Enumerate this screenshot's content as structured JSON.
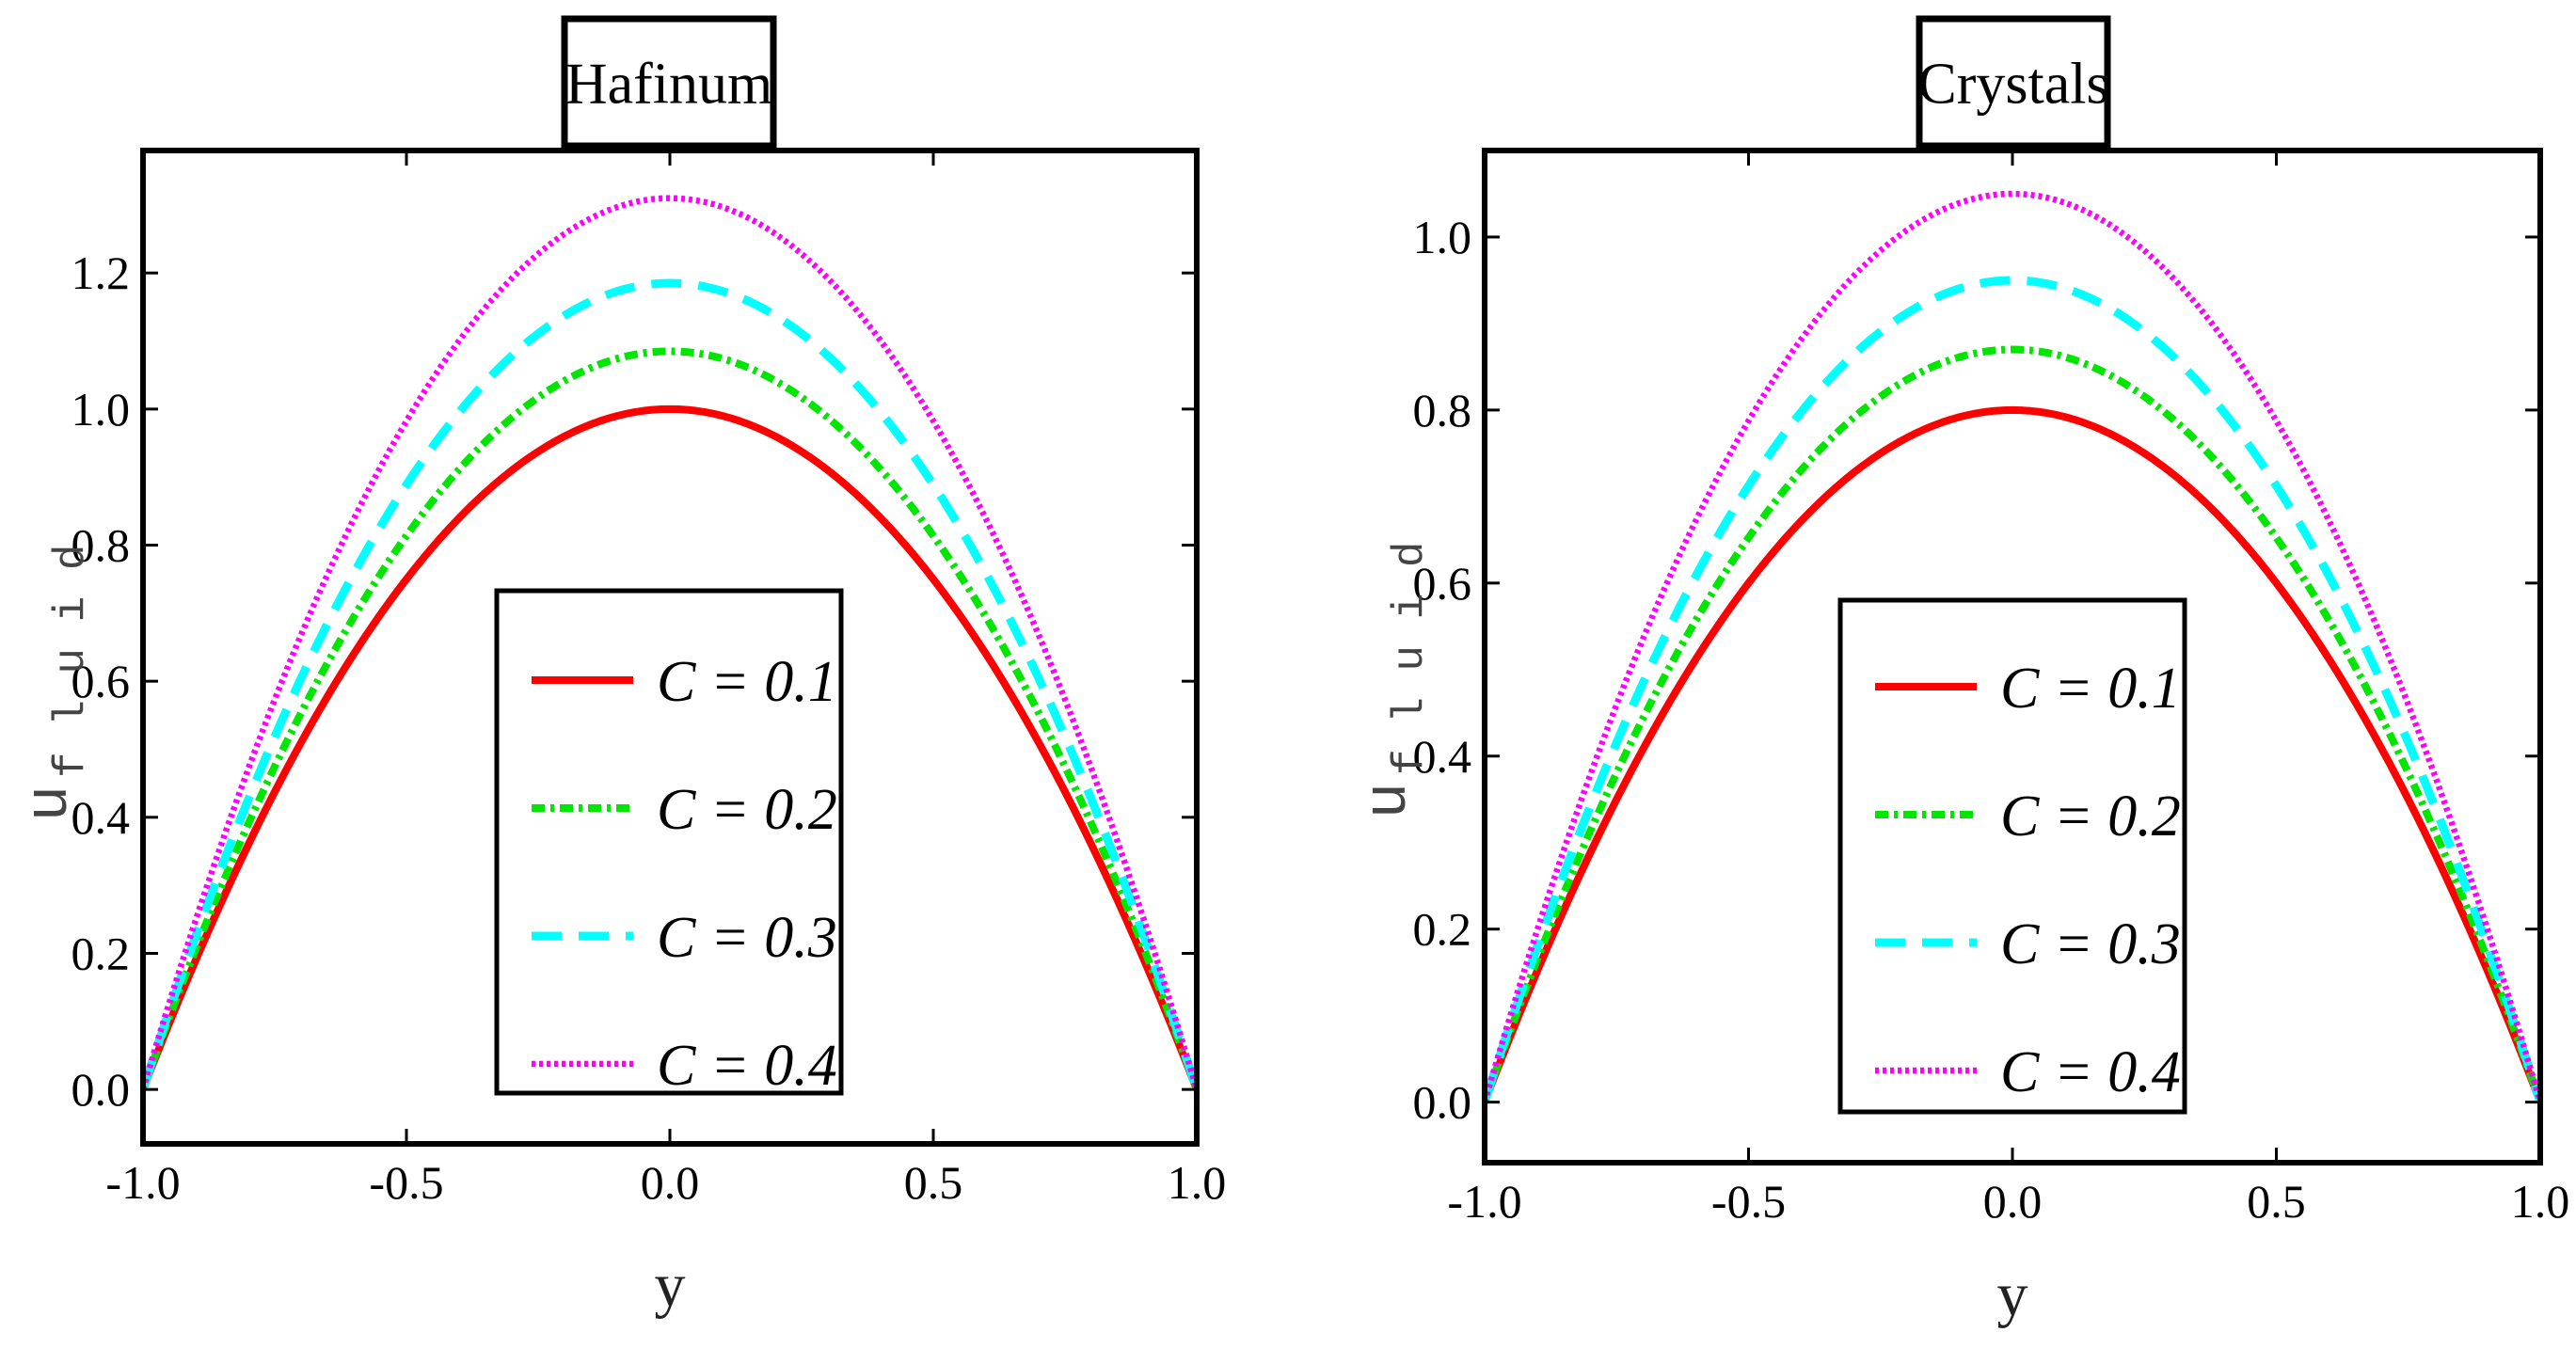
{
  "chart_data": [
    {
      "type": "line",
      "title": "Hafinum",
      "xlabel": "y",
      "ylabel": "u",
      "ylabel_subscript": "f l u i d",
      "xlim": [
        -1.0,
        1.0
      ],
      "ylim": [
        -0.08,
        1.38
      ],
      "xticks": [
        -1.0,
        -0.5,
        0.0,
        0.5,
        1.0
      ],
      "xtick_labels": [
        "-1.0",
        "-0.5",
        "0.0",
        "0.5",
        "1.0"
      ],
      "yticks": [
        0.0,
        0.2,
        0.4,
        0.6,
        0.8,
        1.0,
        1.2
      ],
      "ytick_labels": [
        "0.0",
        "0.2",
        "0.4",
        "0.6",
        "0.8",
        "1.0",
        "1.2"
      ],
      "legend_position": "center",
      "series": [
        {
          "name": "C = 0.1",
          "peak": 1.0,
          "x": [
            -1.0,
            -0.75,
            -0.5,
            -0.25,
            0.0,
            0.25,
            0.5,
            0.75,
            1.0
          ],
          "values": [
            0.0,
            0.44,
            0.75,
            0.94,
            1.0,
            0.94,
            0.75,
            0.44,
            0.0
          ],
          "color": "#ff0000",
          "style": "solid"
        },
        {
          "name": "C = 0.2",
          "peak": 1.085,
          "x": [
            -1.0,
            -0.75,
            -0.5,
            -0.25,
            0.0,
            0.25,
            0.5,
            0.75,
            1.0
          ],
          "values": [
            0.0,
            0.47,
            0.81,
            1.02,
            1.085,
            1.02,
            0.81,
            0.47,
            0.0
          ],
          "color": "#00e600",
          "style": "dashdot"
        },
        {
          "name": "C = 0.3",
          "peak": 1.185,
          "x": [
            -1.0,
            -0.75,
            -0.5,
            -0.25,
            0.0,
            0.25,
            0.5,
            0.75,
            1.0
          ],
          "values": [
            0.0,
            0.52,
            0.89,
            1.11,
            1.185,
            1.11,
            0.89,
            0.52,
            0.0
          ],
          "color": "#00ffff",
          "style": "dashed"
        },
        {
          "name": "C = 0.4",
          "peak": 1.31,
          "x": [
            -1.0,
            -0.75,
            -0.5,
            -0.25,
            0.0,
            0.25,
            0.5,
            0.75,
            1.0
          ],
          "values": [
            0.0,
            0.57,
            0.98,
            1.23,
            1.31,
            1.23,
            0.98,
            0.57,
            0.0
          ],
          "color": "#ff00ff",
          "style": "dotted"
        }
      ]
    },
    {
      "type": "line",
      "title": "Crystals",
      "xlabel": "y",
      "ylabel": "u",
      "ylabel_subscript": "f l u i d",
      "xlim": [
        -1.0,
        1.0
      ],
      "ylim": [
        -0.07,
        1.1
      ],
      "xticks": [
        -1.0,
        -0.5,
        0.0,
        0.5,
        1.0
      ],
      "xtick_labels": [
        "-1.0",
        "-0.5",
        "0.0",
        "0.5",
        "1.0"
      ],
      "yticks": [
        0.0,
        0.2,
        0.4,
        0.6,
        0.8,
        1.0
      ],
      "ytick_labels": [
        "0.0",
        "0.2",
        "0.4",
        "0.6",
        "0.8",
        "1.0"
      ],
      "legend_position": "center",
      "series": [
        {
          "name": "C = 0.1",
          "peak": 0.8,
          "x": [
            -1.0,
            -0.75,
            -0.5,
            -0.25,
            0.0,
            0.25,
            0.5,
            0.75,
            1.0
          ],
          "values": [
            0.0,
            0.35,
            0.6,
            0.75,
            0.8,
            0.75,
            0.6,
            0.35,
            0.0
          ],
          "color": "#ff0000",
          "style": "solid"
        },
        {
          "name": "C = 0.2",
          "peak": 0.87,
          "x": [
            -1.0,
            -0.75,
            -0.5,
            -0.25,
            0.0,
            0.25,
            0.5,
            0.75,
            1.0
          ],
          "values": [
            0.0,
            0.38,
            0.65,
            0.82,
            0.87,
            0.82,
            0.65,
            0.38,
            0.0
          ],
          "color": "#00e600",
          "style": "dashdot"
        },
        {
          "name": "C = 0.3",
          "peak": 0.95,
          "x": [
            -1.0,
            -0.75,
            -0.5,
            -0.25,
            0.0,
            0.25,
            0.5,
            0.75,
            1.0
          ],
          "values": [
            0.0,
            0.42,
            0.71,
            0.89,
            0.95,
            0.89,
            0.71,
            0.42,
            0.0
          ],
          "color": "#00ffff",
          "style": "dashed"
        },
        {
          "name": "C = 0.4",
          "peak": 1.05,
          "x": [
            -1.0,
            -0.75,
            -0.5,
            -0.25,
            0.0,
            0.25,
            0.5,
            0.75,
            1.0
          ],
          "values": [
            0.0,
            0.46,
            0.79,
            0.98,
            1.05,
            0.98,
            0.79,
            0.46,
            0.0
          ],
          "color": "#ff00ff",
          "style": "dotted"
        }
      ]
    }
  ]
}
